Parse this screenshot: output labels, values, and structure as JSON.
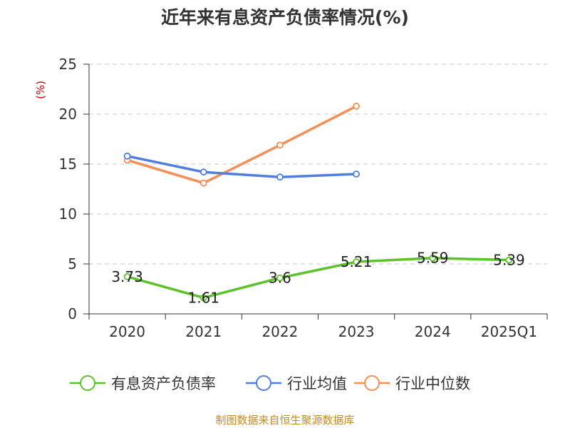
{
  "title": "近年来有息资产负债率情况(%)",
  "unit": "(%)",
  "source": "制图数据来自恒生聚源数据库",
  "colors": {
    "series1": "#5cc22a",
    "series2": "#4f7fdc",
    "series3": "#f78f55",
    "grid": "#c8c8c8",
    "axis": "#333333"
  },
  "chart_data": {
    "type": "line",
    "title": "近年来有息资产负债率情况(%)",
    "ylabel": "(%)",
    "ylim": [
      0,
      25
    ],
    "yticks": [
      0,
      5,
      10,
      15,
      20,
      25
    ],
    "categories": [
      "2020",
      "2021",
      "2022",
      "2023",
      "2024",
      "2025Q1"
    ],
    "grid": true,
    "legend_position": "bottom",
    "series": [
      {
        "name": "有息资产负债率",
        "values": [
          3.73,
          1.61,
          3.6,
          5.21,
          5.59,
          5.39
        ],
        "labels": [
          "3.73",
          "1.61",
          "3.6",
          "5.21",
          "5.59",
          "5.39"
        ],
        "color": "#5cc22a"
      },
      {
        "name": "行业均值",
        "values": [
          15.8,
          14.2,
          13.7,
          14.0,
          null,
          null
        ],
        "color": "#4f7fdc"
      },
      {
        "name": "行业中位数",
        "values": [
          15.4,
          13.1,
          16.9,
          20.8,
          null,
          null
        ],
        "color": "#f78f55"
      }
    ]
  }
}
